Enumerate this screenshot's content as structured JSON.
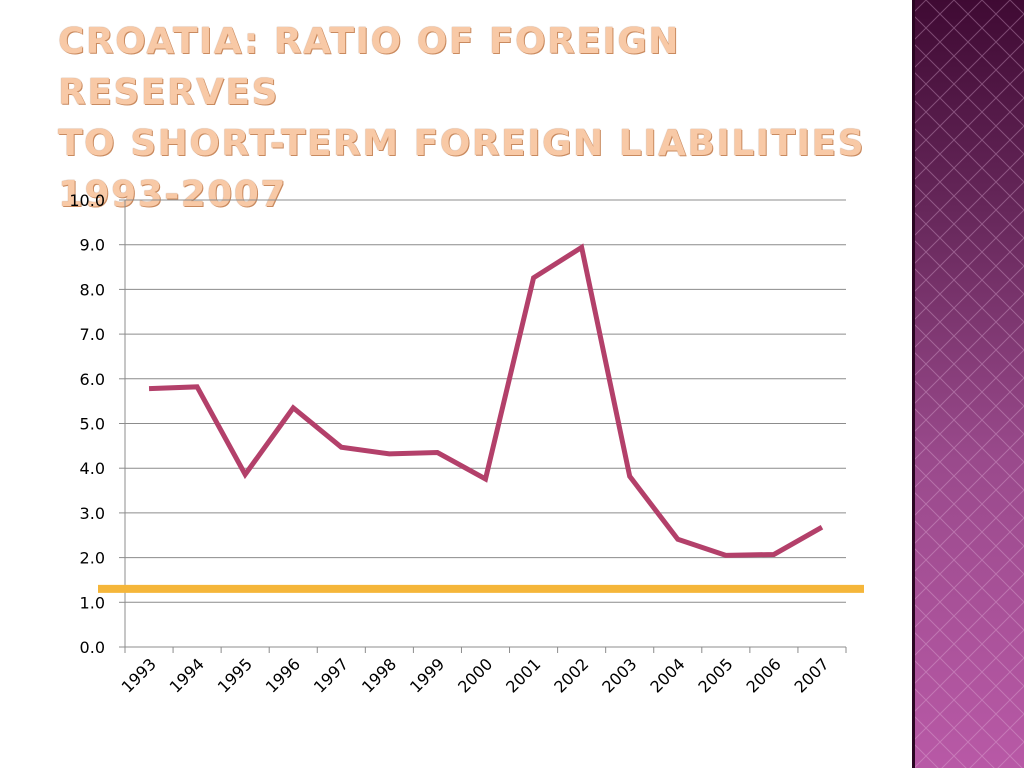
{
  "slide": {
    "title": "Croatia: Ratio of foreign reserves\nto short-term foreign liabilities\n1993-2007"
  },
  "colors": {
    "title": "#f8c9a6",
    "series_line": "#b3406a",
    "threshold_line": "#f5b63a",
    "grid": "#8c8c8c",
    "sidebar_top": "#3f0a33",
    "sidebar_bottom": "#b859a6"
  },
  "chart_data": {
    "type": "line",
    "categories": [
      "1993",
      "1994",
      "1995",
      "1996",
      "1997",
      "1998",
      "1999",
      "2000",
      "2001",
      "2002",
      "2003",
      "2004",
      "2005",
      "2006",
      "2007"
    ],
    "series": [
      {
        "values": [
          5.78,
          5.82,
          3.86,
          5.35,
          4.47,
          4.32,
          4.35,
          3.76,
          8.26,
          8.94,
          3.82,
          2.41,
          2.05,
          2.07,
          2.68
        ]
      }
    ],
    "reference_line": {
      "value": 1.3,
      "color": "#f5b63a"
    },
    "yticks": [
      "0.0",
      "1.0",
      "2.0",
      "3.0",
      "4.0",
      "5.0",
      "6.0",
      "7.0",
      "8.0",
      "9.0",
      "10.0"
    ],
    "ylim": [
      0,
      10
    ],
    "grid": true,
    "legend": "none",
    "title": "",
    "xlabel": "",
    "ylabel": ""
  }
}
